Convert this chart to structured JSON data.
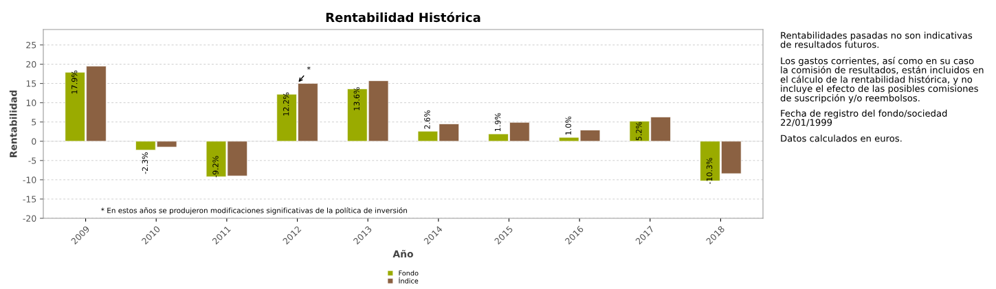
{
  "chart_data": {
    "type": "bar",
    "title": "Rentabilidad Histórica",
    "xlabel": "Año",
    "ylabel": "Rentabilidad",
    "categories": [
      "2009",
      "2010",
      "2011",
      "2012",
      "2013",
      "2014",
      "2015",
      "2016",
      "2017",
      "2018"
    ],
    "series": [
      {
        "name": "Fondo",
        "color": "#9aab00",
        "values": [
          17.9,
          -2.3,
          -9.2,
          12.2,
          13.6,
          2.6,
          1.9,
          1.0,
          5.2,
          -10.3
        ],
        "value_labels": [
          "17.9%",
          "-2.3%",
          "-9.2%",
          "12.2%",
          "13.6%",
          "2.6%",
          "1.9%",
          "1.0%",
          "5.2%",
          "-10.3%"
        ]
      },
      {
        "name": "Índice",
        "color": "#8b6142",
        "values": [
          19.5,
          -1.5,
          -9.0,
          15.0,
          15.7,
          4.5,
          4.9,
          2.9,
          6.3,
          -8.4
        ]
      }
    ],
    "ylim": [
      -20,
      29
    ],
    "yticks": [
      -20,
      -15,
      -10,
      -5,
      0,
      5,
      10,
      15,
      20,
      25
    ],
    "grid": "y",
    "legend": "bottom",
    "annotations": [
      {
        "text": "*",
        "x": "2012",
        "y": 15.0
      },
      "* En estos años se produjeron modificaciones significativas de la política de inversión",
      "Rentabilidades pasadas no son indicativas de resultados futuros.",
      "Los gastos corrientes, así como en su caso la comisión de resultados, están incluidos en el cálculo de la rentabilidad histórica, y no incluye el efecto de las posibles comisiones de suscripción y/o reembolsos.",
      "Fecha de registro del fondo/sociedad 22/01/1999",
      "Datos calculados en euros."
    ]
  }
}
